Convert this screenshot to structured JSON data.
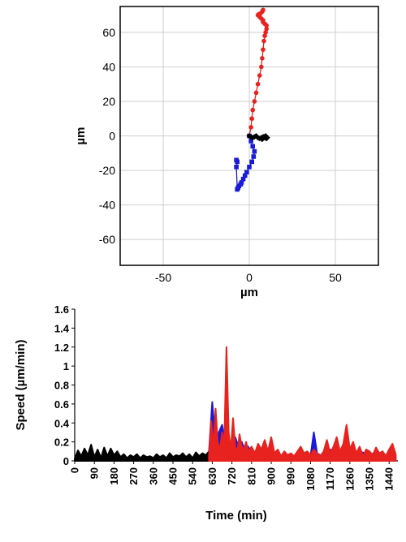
{
  "chart_data": [
    {
      "type": "scatter",
      "xlabel": "µm",
      "ylabel": "µm",
      "xlim": [
        -75,
        75
      ],
      "ylim": [
        -75,
        75
      ],
      "xticks": [
        -50,
        0,
        50
      ],
      "yticks": [
        -60,
        -40,
        -20,
        0,
        20,
        40,
        60
      ],
      "grid": true,
      "series": [
        {
          "color": "#e8221e",
          "marker": "circle",
          "x": [
            0,
            1,
            1.5,
            2,
            3,
            4,
            5,
            6,
            7,
            7.5,
            8,
            8.5,
            9,
            9.5,
            10,
            10,
            9,
            8,
            8,
            7,
            6,
            5,
            5.5,
            6.5,
            7.5,
            8
          ],
          "y": [
            0,
            5,
            10,
            15,
            20,
            25,
            30,
            35,
            40,
            45,
            50,
            55,
            58,
            60,
            62,
            64,
            65,
            66,
            67,
            68,
            69,
            70,
            70.5,
            71,
            72,
            73
          ]
        },
        {
          "color": "#1a1ad8",
          "marker": "square",
          "x": [
            0,
            1,
            2,
            3,
            2.5,
            1.5,
            0,
            -1.5,
            -2.5,
            -3.5,
            -4.5,
            -5,
            -6,
            -6.5,
            -7,
            -7.5,
            -7,
            -7.5
          ],
          "y": [
            0,
            -3,
            -6,
            -9,
            -12,
            -15,
            -18,
            -21,
            -23,
            -25,
            -27,
            -28,
            -29,
            -30,
            -31,
            -18,
            -15,
            -14
          ]
        },
        {
          "color": "#000000",
          "marker": "diamond",
          "x": [
            0,
            1,
            2,
            3,
            4,
            5,
            6,
            7,
            8,
            9,
            10,
            10.5,
            9.5,
            8.5,
            7.5
          ],
          "y": [
            0,
            -0.5,
            -1,
            -0.5,
            0,
            -1,
            -1.5,
            -1,
            -0.5,
            -1,
            -1.5,
            -1,
            0,
            -0.5,
            -2
          ]
        }
      ]
    },
    {
      "type": "area",
      "xlabel": "Time (min)",
      "ylabel": "Speed (µm/min)",
      "xlim": [
        0,
        1480
      ],
      "ylim": [
        0,
        1.6
      ],
      "xticks": [
        0,
        90,
        180,
        270,
        360,
        450,
        540,
        630,
        720,
        810,
        900,
        990,
        1080,
        1170,
        1260,
        1350,
        1440
      ],
      "yticks": [
        0,
        0.2,
        0.4,
        0.6,
        0.8,
        1,
        1.2,
        1.4,
        1.6
      ],
      "grid": false,
      "series": [
        {
          "color": "#000000",
          "x": [
            0,
            15,
            30,
            45,
            60,
            75,
            90,
            105,
            120,
            135,
            150,
            165,
            180,
            195,
            210,
            225,
            240,
            255,
            270,
            285,
            300,
            315,
            330,
            345,
            360,
            375,
            390,
            405,
            420,
            435,
            450,
            465,
            480,
            495,
            510,
            525,
            540,
            555,
            570,
            585,
            600,
            615
          ],
          "y": [
            0.02,
            0.11,
            0.05,
            0.13,
            0.06,
            0.17,
            0.04,
            0.12,
            0.03,
            0.14,
            0.05,
            0.13,
            0.06,
            0.1,
            0.04,
            0.07,
            0.03,
            0.06,
            0.04,
            0.07,
            0.03,
            0.06,
            0.04,
            0.05,
            0.03,
            0.07,
            0.04,
            0.06,
            0.03,
            0.08,
            0.04,
            0.06,
            0.05,
            0.08,
            0.04,
            0.07,
            0.03,
            0.09,
            0.05,
            0.08,
            0.06,
            0.1
          ]
        },
        {
          "color": "#1a1ad8",
          "x": [
            615,
            630,
            645,
            660,
            675,
            690,
            705,
            720,
            735,
            750,
            765,
            780,
            795,
            810,
            840,
            870,
            900,
            930,
            960,
            990,
            1020,
            1050,
            1080,
            1095,
            1110,
            1125,
            1140,
            1170,
            1200,
            1230,
            1260,
            1290,
            1320,
            1350,
            1380,
            1410,
            1440,
            1470
          ],
          "y": [
            0.1,
            0.62,
            0.2,
            0.3,
            0.38,
            0.18,
            0.12,
            0.22,
            0.25,
            0.15,
            0.2,
            0.1,
            0.15,
            0.06,
            0.08,
            0.05,
            0.07,
            0.04,
            0.06,
            0.04,
            0.05,
            0.07,
            0.05,
            0.3,
            0.08,
            0.06,
            0.05,
            0.12,
            0.04,
            0.05,
            0.07,
            0.05,
            0.09,
            0.04,
            0.11,
            0.05,
            0.04,
            0.06
          ]
        },
        {
          "color": "#e8221e",
          "x": [
            615,
            625,
            635,
            645,
            655,
            665,
            675,
            685,
            695,
            705,
            715,
            725,
            735,
            745,
            755,
            765,
            775,
            785,
            795,
            810,
            825,
            840,
            855,
            870,
            885,
            900,
            915,
            930,
            945,
            960,
            975,
            990,
            1005,
            1020,
            1035,
            1050,
            1065,
            1080,
            1095,
            1110,
            1125,
            1140,
            1155,
            1170,
            1185,
            1200,
            1215,
            1230,
            1245,
            1260,
            1275,
            1290,
            1305,
            1320,
            1335,
            1350,
            1365,
            1380,
            1395,
            1410,
            1425,
            1440,
            1455,
            1470
          ],
          "y": [
            0.05,
            0.42,
            0.15,
            0.55,
            0.2,
            0.12,
            0.3,
            0.18,
            1.2,
            0.3,
            0.12,
            0.45,
            0.15,
            0.1,
            0.28,
            0.15,
            0.12,
            0.2,
            0.1,
            0.15,
            0.08,
            0.18,
            0.12,
            0.22,
            0.1,
            0.25,
            0.08,
            0.12,
            0.05,
            0.1,
            0.06,
            0.08,
            0.05,
            0.1,
            0.15,
            0.08,
            0.1,
            0.06,
            0.12,
            0.08,
            0.05,
            0.1,
            0.22,
            0.08,
            0.15,
            0.25,
            0.1,
            0.18,
            0.38,
            0.12,
            0.2,
            0.08,
            0.15,
            0.05,
            0.12,
            0.1,
            0.06,
            0.14,
            0.08,
            0.1,
            0.05,
            0.12,
            0.18,
            0.07
          ]
        }
      ]
    }
  ]
}
